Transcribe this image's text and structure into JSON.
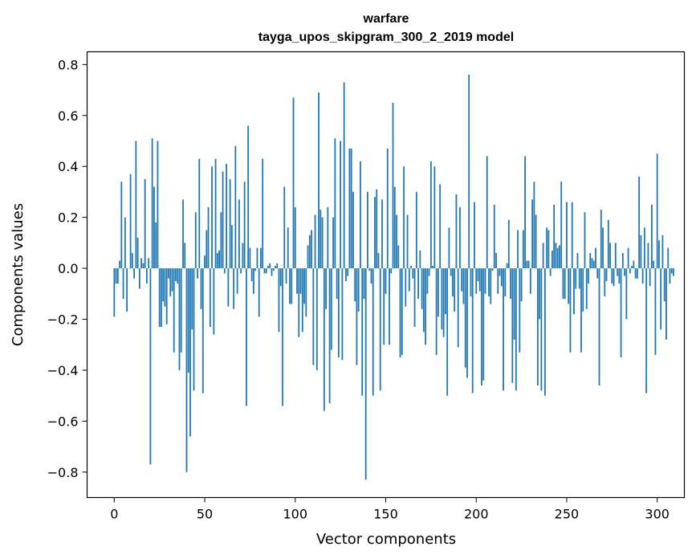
{
  "chart_data": {
    "type": "bar",
    "title": "warfare",
    "subtitle": "tayga_upos_skipgram_300_2_2019 model",
    "xlabel": "Vector components",
    "ylabel": "Components values",
    "xlim": [
      -15,
      315
    ],
    "ylim": [
      -0.9,
      0.85
    ],
    "xticks": [
      0,
      50,
      100,
      150,
      200,
      250,
      300
    ],
    "yticks": [
      -0.8,
      -0.6,
      -0.4,
      -0.2,
      0.0,
      0.2,
      0.4,
      0.6,
      0.8
    ],
    "ytick_labels": [
      "−0.8",
      "−0.6",
      "−0.4",
      "−0.2",
      "0.0",
      "0.2",
      "0.4",
      "0.6",
      "0.8"
    ],
    "grid": false,
    "color": "#1f77b4",
    "values": [
      -0.19,
      -0.06,
      -0.06,
      0.03,
      0.34,
      -0.12,
      0.2,
      -0.17,
      0.0,
      0.37,
      0.06,
      -0.04,
      0.5,
      0.12,
      -0.08,
      0.04,
      0.02,
      0.35,
      -0.06,
      0.04,
      -0.77,
      0.51,
      0.32,
      0.18,
      0.5,
      -0.23,
      -0.23,
      -0.13,
      -0.15,
      -0.22,
      -0.04,
      -0.11,
      -0.09,
      -0.33,
      -0.05,
      -0.06,
      -0.4,
      -0.33,
      0.27,
      0.1,
      -0.8,
      -0.41,
      -0.66,
      -0.24,
      -0.48,
      0.22,
      -0.04,
      0.43,
      -0.16,
      -0.49,
      0.05,
      0.15,
      0.24,
      -0.23,
      0.4,
      -0.26,
      0.43,
      0.06,
      0.07,
      0.22,
      0.38,
      -0.02,
      0.41,
      -0.15,
      0.35,
      0.17,
      -0.16,
      0.48,
      -0.1,
      0.27,
      -0.02,
      0.1,
      0.34,
      -0.54,
      0.56,
      0.08,
      -0.05,
      -0.1,
      -0.01,
      0.08,
      -0.19,
      0.08,
      0.43,
      -0.02,
      -0.02,
      0.01,
      0.02,
      -0.03,
      -0.01,
      0.01,
      0.02,
      -0.25,
      -0.07,
      -0.54,
      0.32,
      -0.06,
      0.16,
      -0.14,
      -0.14,
      0.67,
      0.24,
      -0.1,
      -0.27,
      -0.1,
      -0.25,
      -0.14,
      -0.19,
      0.09,
      0.13,
      0.15,
      -0.38,
      0.21,
      -0.4,
      0.69,
      0.23,
      0.2,
      -0.56,
      -0.16,
      0.24,
      -0.53,
      -0.32,
      0.2,
      0.51,
      -0.12,
      -0.35,
      0.5,
      -0.36,
      0.73,
      -0.05,
      -0.03,
      0.47,
      0.47,
      0.3,
      -0.13,
      -0.38,
      -0.17,
      0.42,
      -0.5,
      -0.12,
      -0.83,
      0.3,
      -0.01,
      -0.06,
      -0.5,
      0.28,
      0.31,
      0.06,
      -0.48,
      0.27,
      -0.3,
      -0.1,
      0.47,
      -0.3,
      -0.02,
      0.65,
      0.32,
      0.21,
      0.09,
      -0.35,
      -0.34,
      0.4,
      -0.15,
      0.21,
      -0.09,
      0.01,
      -0.04,
      -0.23,
      0.3,
      -0.12,
      0.07,
      -0.16,
      -0.25,
      -0.3,
      -0.1,
      -0.03,
      0.42,
      0.01,
      0.4,
      -0.34,
      -0.19,
      0.33,
      -0.24,
      -0.27,
      -0.18,
      -0.5,
      0.16,
      -0.03,
      -0.11,
      -0.17,
      0.29,
      -0.31,
      0.24,
      -0.09,
      -0.14,
      -0.39,
      -0.43,
      0.76,
      -0.11,
      -0.49,
      0.26,
      -0.1,
      -0.05,
      -0.09,
      -0.46,
      -0.44,
      -0.1,
      0.44,
      -0.11,
      -0.14,
      -0.01,
      0.25,
      0.06,
      -0.1,
      -0.03,
      -0.07,
      -0.48,
      -0.11,
      0.02,
      0.19,
      -0.12,
      -0.45,
      -0.28,
      -0.48,
      0.15,
      -0.33,
      -0.13,
      0.15,
      0.44,
      0.03,
      0.03,
      -0.1,
      0.27,
      0.34,
      0.21,
      -0.46,
      -0.2,
      -0.48,
      0.1,
      -0.5,
      0.16,
      0.15,
      -0.03,
      0.07,
      0.25,
      0.1,
      0.08,
      0.09,
      0.34,
      -0.12,
      -0.12,
      0.26,
      -0.14,
      -0.33,
      0.26,
      -0.18,
      -0.08,
      0.06,
      -0.08,
      -0.33,
      -0.17,
      0.22,
      -0.16,
      -0.06,
      0.06,
      0.04,
      0.03,
      0.08,
      -0.04,
      -0.46,
      0.23,
      0.16,
      -0.11,
      -0.05,
      0.19,
      0.1,
      -0.06,
      -0.07,
      0.1,
      -0.03,
      -0.06,
      -0.35,
      0.06,
      -0.03,
      -0.2,
      0.08,
      -0.02,
      0.01,
      0.03,
      -0.04,
      -0.04,
      0.36,
      0.13,
      -0.06,
      0.16,
      -0.49,
      0.1,
      -0.07,
      0.25,
      0.03,
      -0.34,
      0.45,
      0.11,
      -0.24,
      0.13,
      -0.13,
      -0.28,
      0.08,
      -0.06,
      -0.02,
      -0.03
    ]
  }
}
